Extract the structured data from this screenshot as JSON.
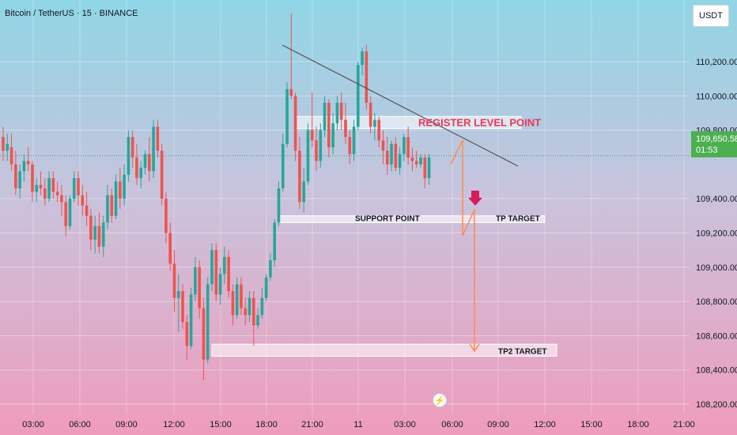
{
  "header": {
    "symbol_title": "Bitcoin / TetherUS · 15 · BINANCE"
  },
  "axis": {
    "currency": "USDT"
  },
  "current_price": {
    "value": "109,650.58",
    "countdown": "01:53",
    "color": "#4caf50"
  },
  "icons": {
    "lightning": "lightning-icon"
  },
  "annotations": {
    "resistance_label": "REGISTER LEVEL POINT",
    "support_label": "SUPPORT POINT",
    "tp_label": "TP TARGET",
    "tp2_label": "TP2 TARGET"
  },
  "colors": {
    "up": "#26a69a",
    "down": "#ef5350",
    "arrow": "#ff8a50",
    "down_arrow": "#d81b60",
    "trendline": "#555555"
  },
  "chart_data": {
    "type": "candlestick",
    "title": "Bitcoin / TetherUS · 15 · BINANCE",
    "y_ticks": [
      108200,
      108400,
      108600,
      108800,
      109000,
      109200,
      109400,
      109650.58,
      109800,
      110000,
      110200
    ],
    "y_tick_labels": [
      "108,200.00",
      "108,400.00",
      "108,600.00",
      "108,800.00",
      "109,000.00",
      "109,200.00",
      "109,400.00",
      "109,650.58",
      "109,800.00",
      "110,000.00",
      "110,200.00"
    ],
    "ylim": [
      108140,
      110560
    ],
    "x_labels": [
      "03:00",
      "06:00",
      "09:00",
      "12:00",
      "15:00",
      "18:00",
      "21:00",
      "11",
      "03:00",
      "06:00",
      "09:00",
      "12:00",
      "15:00",
      "18:00",
      "21:00"
    ],
    "zones": [
      {
        "name": "resistance",
        "from": 109810,
        "to": 109880
      },
      {
        "name": "support",
        "from": 109260,
        "to": 109300
      },
      {
        "name": "tp2",
        "from": 108480,
        "to": 108550
      }
    ],
    "key_levels": {
      "resistance": 109845,
      "support": 109280,
      "tp_target": 109280,
      "tp2_target": 108510
    },
    "candles": [
      {
        "o": 109760,
        "h": 109820,
        "l": 109620,
        "c": 109680
      },
      {
        "o": 109680,
        "h": 109780,
        "l": 109620,
        "c": 109720
      },
      {
        "o": 109700,
        "h": 109780,
        "l": 109560,
        "c": 109600
      },
      {
        "o": 109600,
        "h": 109680,
        "l": 109420,
        "c": 109460
      },
      {
        "o": 109460,
        "h": 109600,
        "l": 109400,
        "c": 109560
      },
      {
        "o": 109560,
        "h": 109660,
        "l": 109500,
        "c": 109620
      },
      {
        "o": 109620,
        "h": 109700,
        "l": 109560,
        "c": 109600
      },
      {
        "o": 109600,
        "h": 109620,
        "l": 109380,
        "c": 109440
      },
      {
        "o": 109440,
        "h": 109520,
        "l": 109380,
        "c": 109480
      },
      {
        "o": 109480,
        "h": 109560,
        "l": 109420,
        "c": 109460
      },
      {
        "o": 109460,
        "h": 109520,
        "l": 109360,
        "c": 109400
      },
      {
        "o": 109400,
        "h": 109560,
        "l": 109380,
        "c": 109520
      },
      {
        "o": 109520,
        "h": 109560,
        "l": 109400,
        "c": 109440
      },
      {
        "o": 109440,
        "h": 109500,
        "l": 109380,
        "c": 109420
      },
      {
        "o": 109420,
        "h": 109480,
        "l": 109300,
        "c": 109380
      },
      {
        "o": 109380,
        "h": 109420,
        "l": 109180,
        "c": 109240
      },
      {
        "o": 109240,
        "h": 109420,
        "l": 109220,
        "c": 109400
      },
      {
        "o": 109400,
        "h": 109560,
        "l": 109380,
        "c": 109520
      },
      {
        "o": 109520,
        "h": 109560,
        "l": 109360,
        "c": 109420
      },
      {
        "o": 109420,
        "h": 109480,
        "l": 109300,
        "c": 109360
      },
      {
        "o": 109360,
        "h": 109440,
        "l": 109240,
        "c": 109300
      },
      {
        "o": 109300,
        "h": 109340,
        "l": 109100,
        "c": 109160
      },
      {
        "o": 109160,
        "h": 109300,
        "l": 109080,
        "c": 109240
      },
      {
        "o": 109240,
        "h": 109320,
        "l": 109080,
        "c": 109120
      },
      {
        "o": 109120,
        "h": 109300,
        "l": 109060,
        "c": 109260
      },
      {
        "o": 109260,
        "h": 109480,
        "l": 109220,
        "c": 109420
      },
      {
        "o": 109420,
        "h": 109460,
        "l": 109260,
        "c": 109300
      },
      {
        "o": 109300,
        "h": 109540,
        "l": 109280,
        "c": 109500
      },
      {
        "o": 109500,
        "h": 109580,
        "l": 109340,
        "c": 109400
      },
      {
        "o": 109400,
        "h": 109600,
        "l": 109360,
        "c": 109540
      },
      {
        "o": 109540,
        "h": 109800,
        "l": 109500,
        "c": 109760
      },
      {
        "o": 109760,
        "h": 109800,
        "l": 109580,
        "c": 109640
      },
      {
        "o": 109640,
        "h": 109720,
        "l": 109480,
        "c": 109520
      },
      {
        "o": 109520,
        "h": 109620,
        "l": 109460,
        "c": 109580
      },
      {
        "o": 109580,
        "h": 109680,
        "l": 109540,
        "c": 109660
      },
      {
        "o": 109660,
        "h": 109760,
        "l": 109500,
        "c": 109560
      },
      {
        "o": 109560,
        "h": 109860,
        "l": 109520,
        "c": 109820
      },
      {
        "o": 109820,
        "h": 109860,
        "l": 109640,
        "c": 109680
      },
      {
        "o": 109680,
        "h": 109720,
        "l": 109360,
        "c": 109400
      },
      {
        "o": 109400,
        "h": 109440,
        "l": 109140,
        "c": 109200
      },
      {
        "o": 109200,
        "h": 109260,
        "l": 108980,
        "c": 109020
      },
      {
        "o": 109020,
        "h": 109100,
        "l": 108740,
        "c": 108820
      },
      {
        "o": 108820,
        "h": 108960,
        "l": 108620,
        "c": 108860
      },
      {
        "o": 108860,
        "h": 108900,
        "l": 108640,
        "c": 108680
      },
      {
        "o": 108680,
        "h": 108720,
        "l": 108460,
        "c": 108540
      },
      {
        "o": 108540,
        "h": 108880,
        "l": 108520,
        "c": 108840
      },
      {
        "o": 108840,
        "h": 109060,
        "l": 108800,
        "c": 109000
      },
      {
        "o": 109000,
        "h": 109040,
        "l": 108700,
        "c": 108760
      },
      {
        "o": 108760,
        "h": 108820,
        "l": 108340,
        "c": 108460
      },
      {
        "o": 108460,
        "h": 108940,
        "l": 108440,
        "c": 108900
      },
      {
        "o": 108900,
        "h": 109140,
        "l": 108860,
        "c": 109100
      },
      {
        "o": 109100,
        "h": 109140,
        "l": 108800,
        "c": 108840
      },
      {
        "o": 108840,
        "h": 109000,
        "l": 108780,
        "c": 108960
      },
      {
        "o": 108960,
        "h": 109120,
        "l": 108900,
        "c": 109060
      },
      {
        "o": 109060,
        "h": 109100,
        "l": 108820,
        "c": 108860
      },
      {
        "o": 108860,
        "h": 108900,
        "l": 108660,
        "c": 108720
      },
      {
        "o": 108720,
        "h": 108940,
        "l": 108700,
        "c": 108900
      },
      {
        "o": 108900,
        "h": 108940,
        "l": 108720,
        "c": 108760
      },
      {
        "o": 108760,
        "h": 108820,
        "l": 108660,
        "c": 108720
      },
      {
        "o": 108720,
        "h": 108860,
        "l": 108680,
        "c": 108820
      },
      {
        "o": 108820,
        "h": 108860,
        "l": 108540,
        "c": 108660
      },
      {
        "o": 108660,
        "h": 108760,
        "l": 108640,
        "c": 108720
      },
      {
        "o": 108720,
        "h": 108880,
        "l": 108700,
        "c": 108820
      },
      {
        "o": 108820,
        "h": 108960,
        "l": 108800,
        "c": 108940
      },
      {
        "o": 108940,
        "h": 109080,
        "l": 108920,
        "c": 109040
      },
      {
        "o": 109040,
        "h": 109280,
        "l": 109000,
        "c": 109260
      },
      {
        "o": 109260,
        "h": 109500,
        "l": 109240,
        "c": 109460
      },
      {
        "o": 109460,
        "h": 109780,
        "l": 109440,
        "c": 109720
      },
      {
        "o": 109720,
        "h": 110080,
        "l": 109700,
        "c": 110040
      },
      {
        "o": 110040,
        "h": 110480,
        "l": 109980,
        "c": 110000
      },
      {
        "o": 110000,
        "h": 110020,
        "l": 109620,
        "c": 109680
      },
      {
        "o": 109680,
        "h": 109760,
        "l": 109340,
        "c": 109380
      },
      {
        "o": 109380,
        "h": 109580,
        "l": 109320,
        "c": 109500
      },
      {
        "o": 109500,
        "h": 109840,
        "l": 109480,
        "c": 109800
      },
      {
        "o": 109800,
        "h": 110020,
        "l": 109700,
        "c": 109740
      },
      {
        "o": 109740,
        "h": 109820,
        "l": 109560,
        "c": 109620
      },
      {
        "o": 109620,
        "h": 109840,
        "l": 109580,
        "c": 109800
      },
      {
        "o": 109800,
        "h": 110000,
        "l": 109760,
        "c": 109960
      },
      {
        "o": 109960,
        "h": 109980,
        "l": 109640,
        "c": 109700
      },
      {
        "o": 109700,
        "h": 109900,
        "l": 109660,
        "c": 109840
      },
      {
        "o": 109840,
        "h": 110000,
        "l": 109800,
        "c": 109960
      },
      {
        "o": 109960,
        "h": 110020,
        "l": 109800,
        "c": 109860
      },
      {
        "o": 109860,
        "h": 109960,
        "l": 109720,
        "c": 109760
      },
      {
        "o": 109760,
        "h": 109800,
        "l": 109600,
        "c": 109660
      },
      {
        "o": 109660,
        "h": 109860,
        "l": 109620,
        "c": 109820
      },
      {
        "o": 109820,
        "h": 110200,
        "l": 109800,
        "c": 110180
      },
      {
        "o": 110180,
        "h": 110280,
        "l": 110120,
        "c": 110260
      },
      {
        "o": 110260,
        "h": 110300,
        "l": 109920,
        "c": 109960
      },
      {
        "o": 109960,
        "h": 110000,
        "l": 109780,
        "c": 109820
      },
      {
        "o": 109820,
        "h": 109900,
        "l": 109740,
        "c": 109860
      },
      {
        "o": 109860,
        "h": 109880,
        "l": 109700,
        "c": 109740
      },
      {
        "o": 109740,
        "h": 109800,
        "l": 109600,
        "c": 109680
      },
      {
        "o": 109680,
        "h": 109760,
        "l": 109540,
        "c": 109600
      },
      {
        "o": 109600,
        "h": 109740,
        "l": 109560,
        "c": 109720
      },
      {
        "o": 109720,
        "h": 109760,
        "l": 109560,
        "c": 109580
      },
      {
        "o": 109580,
        "h": 109700,
        "l": 109540,
        "c": 109660
      },
      {
        "o": 109660,
        "h": 109780,
        "l": 109620,
        "c": 109760
      },
      {
        "o": 109760,
        "h": 109820,
        "l": 109600,
        "c": 109640
      },
      {
        "o": 109640,
        "h": 109700,
        "l": 109560,
        "c": 109620
      },
      {
        "o": 109620,
        "h": 109680,
        "l": 109580,
        "c": 109600
      },
      {
        "o": 109600,
        "h": 109660,
        "l": 109580,
        "c": 109640
      },
      {
        "o": 109640,
        "h": 109660,
        "l": 109460,
        "c": 109520
      },
      {
        "o": 109520,
        "h": 109660,
        "l": 109480,
        "c": 109640
      }
    ]
  }
}
